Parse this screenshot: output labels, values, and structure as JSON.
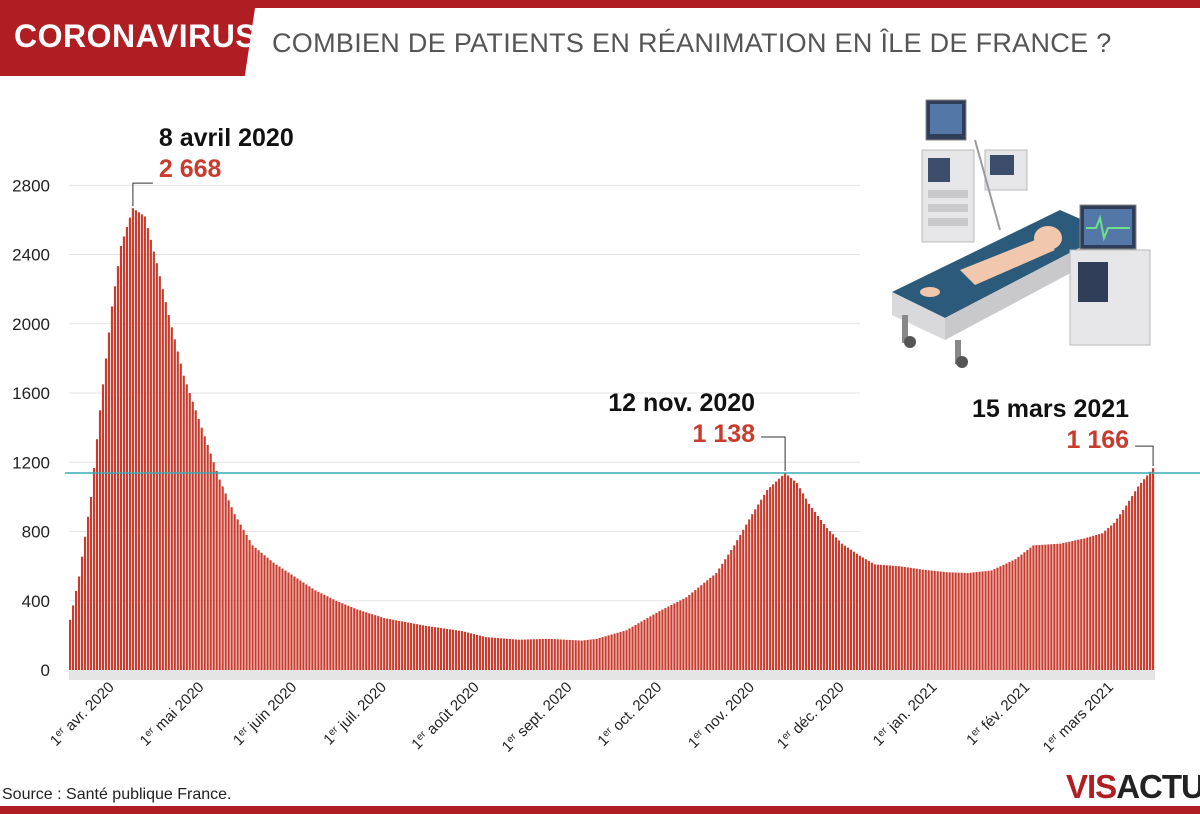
{
  "header": {
    "badge": "CORONAVIRUS",
    "title": "COMBIEN DE PATIENTS EN RÉANIMATION EN ÎLE DE FRANCE ?"
  },
  "footer": {
    "source": "Source : Santé publique France.",
    "logo_part1": "VIS",
    "logo_part2": "ACTU"
  },
  "colors": {
    "brand": "#b01e23",
    "bar": "#c93c2d",
    "reference_line": "#3aaab6"
  },
  "chart_data": {
    "type": "bar",
    "start_date": "2020-03-18",
    "end_date": "2021-03-15",
    "ylim": [
      0,
      2900
    ],
    "yticks": [
      0,
      400,
      800,
      1200,
      1600,
      2000,
      2400,
      2800
    ],
    "reference_line": 1138,
    "grid": true,
    "anchors": [
      [
        "2020-03-18",
        290
      ],
      [
        "2020-03-21",
        540
      ],
      [
        "2020-03-25",
        1000
      ],
      [
        "2020-03-28",
        1500
      ],
      [
        "2020-04-01",
        2100
      ],
      [
        "2020-04-04",
        2450
      ],
      [
        "2020-04-08",
        2668
      ],
      [
        "2020-04-12",
        2620
      ],
      [
        "2020-04-16",
        2350
      ],
      [
        "2020-04-20",
        2050
      ],
      [
        "2020-04-25",
        1700
      ],
      [
        "2020-05-01",
        1400
      ],
      [
        "2020-05-07",
        1100
      ],
      [
        "2020-05-12",
        900
      ],
      [
        "2020-05-18",
        720
      ],
      [
        "2020-05-25",
        620
      ],
      [
        "2020-06-01",
        540
      ],
      [
        "2020-06-08",
        460
      ],
      [
        "2020-06-15",
        400
      ],
      [
        "2020-06-22",
        350
      ],
      [
        "2020-07-01",
        300
      ],
      [
        "2020-07-15",
        255
      ],
      [
        "2020-07-27",
        225
      ],
      [
        "2020-08-04",
        190
      ],
      [
        "2020-08-15",
        175
      ],
      [
        "2020-08-25",
        180
      ],
      [
        "2020-09-05",
        170
      ],
      [
        "2020-09-10",
        180
      ],
      [
        "2020-09-20",
        230
      ],
      [
        "2020-10-01",
        340
      ],
      [
        "2020-10-10",
        420
      ],
      [
        "2020-10-20",
        560
      ],
      [
        "2020-10-26",
        720
      ],
      [
        "2020-11-01",
        900
      ],
      [
        "2020-11-06",
        1040
      ],
      [
        "2020-11-12",
        1138
      ],
      [
        "2020-11-16",
        1080
      ],
      [
        "2020-11-20",
        960
      ],
      [
        "2020-11-26",
        820
      ],
      [
        "2020-12-01",
        730
      ],
      [
        "2020-12-07",
        660
      ],
      [
        "2020-12-12",
        610
      ],
      [
        "2020-12-20",
        600
      ],
      [
        "2020-12-28",
        580
      ],
      [
        "2021-01-05",
        565
      ],
      [
        "2021-01-12",
        560
      ],
      [
        "2021-01-20",
        575
      ],
      [
        "2021-01-28",
        640
      ],
      [
        "2021-02-03",
        720
      ],
      [
        "2021-02-12",
        730
      ],
      [
        "2021-02-20",
        760
      ],
      [
        "2021-02-26",
        790
      ],
      [
        "2021-03-02",
        850
      ],
      [
        "2021-03-06",
        950
      ],
      [
        "2021-03-10",
        1060
      ],
      [
        "2021-03-15",
        1166
      ]
    ],
    "x_ticks": [
      {
        "date": "2020-04-01",
        "prefix": "1",
        "sup": "er",
        "label": "avr. 2020"
      },
      {
        "date": "2020-05-01",
        "prefix": "1",
        "sup": "er",
        "label": "mai 2020"
      },
      {
        "date": "2020-06-01",
        "prefix": "1",
        "sup": "er",
        "label": "juin 2020"
      },
      {
        "date": "2020-07-01",
        "prefix": "1",
        "sup": "er",
        "label": "juil. 2020"
      },
      {
        "date": "2020-08-01",
        "prefix": "1",
        "sup": "er",
        "label": "août 2020"
      },
      {
        "date": "2020-09-01",
        "prefix": "1",
        "sup": "er",
        "label": "sept. 2020"
      },
      {
        "date": "2020-10-01",
        "prefix": "1",
        "sup": "er",
        "label": "oct. 2020"
      },
      {
        "date": "2020-11-01",
        "prefix": "1",
        "sup": "er",
        "label": "nov. 2020"
      },
      {
        "date": "2020-12-01",
        "prefix": "1",
        "sup": "er",
        "label": "déc. 2020"
      },
      {
        "date": "2021-01-01",
        "prefix": "1",
        "sup": "er",
        "label": "jan. 2021"
      },
      {
        "date": "2021-02-01",
        "prefix": "1",
        "sup": "er",
        "label": "fév. 2021"
      },
      {
        "date": "2021-03-01",
        "prefix": "1",
        "sup": "er",
        "label": "mars 2021"
      }
    ],
    "annotations": [
      {
        "date": "2020-04-08",
        "date_label": "8 avril 2020",
        "value": 2668,
        "value_label": "2 668"
      },
      {
        "date": "2020-11-12",
        "date_label": "12 nov. 2020",
        "value": 1138,
        "value_label": "1 138"
      },
      {
        "date": "2021-03-15",
        "date_label": "15 mars 2021",
        "value": 1166,
        "value_label": "1 166"
      }
    ]
  }
}
